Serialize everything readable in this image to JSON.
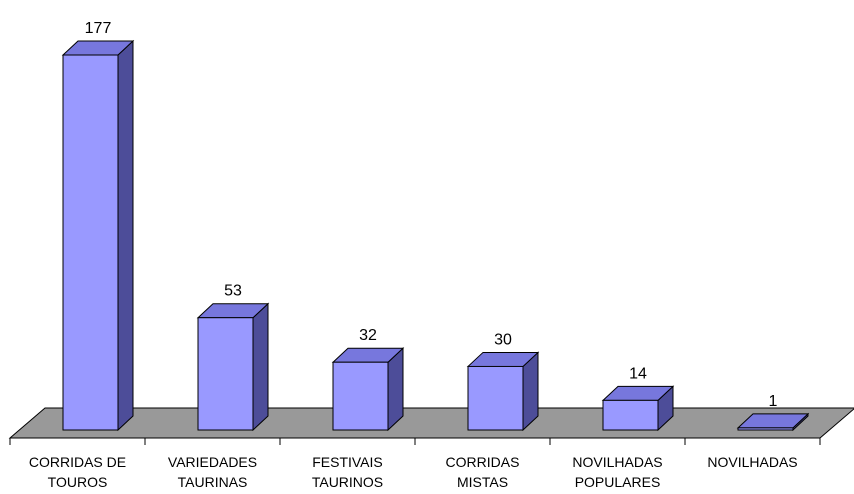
{
  "chart_data": {
    "type": "bar3d",
    "categories": [
      "CORRIDAS DE TOUROS",
      "VARIEDADES TAURINAS",
      "FESTIVAIS TAURINOS",
      "CORRIDAS MISTAS",
      "NOVILHADAS POPULARES",
      "NOVILHADAS"
    ],
    "values": [
      177,
      53,
      32,
      30,
      14,
      1
    ],
    "color": "#9999ff",
    "side_color": "#4d4d99",
    "top_color": "#7777dd",
    "floor_color": "#999999"
  }
}
